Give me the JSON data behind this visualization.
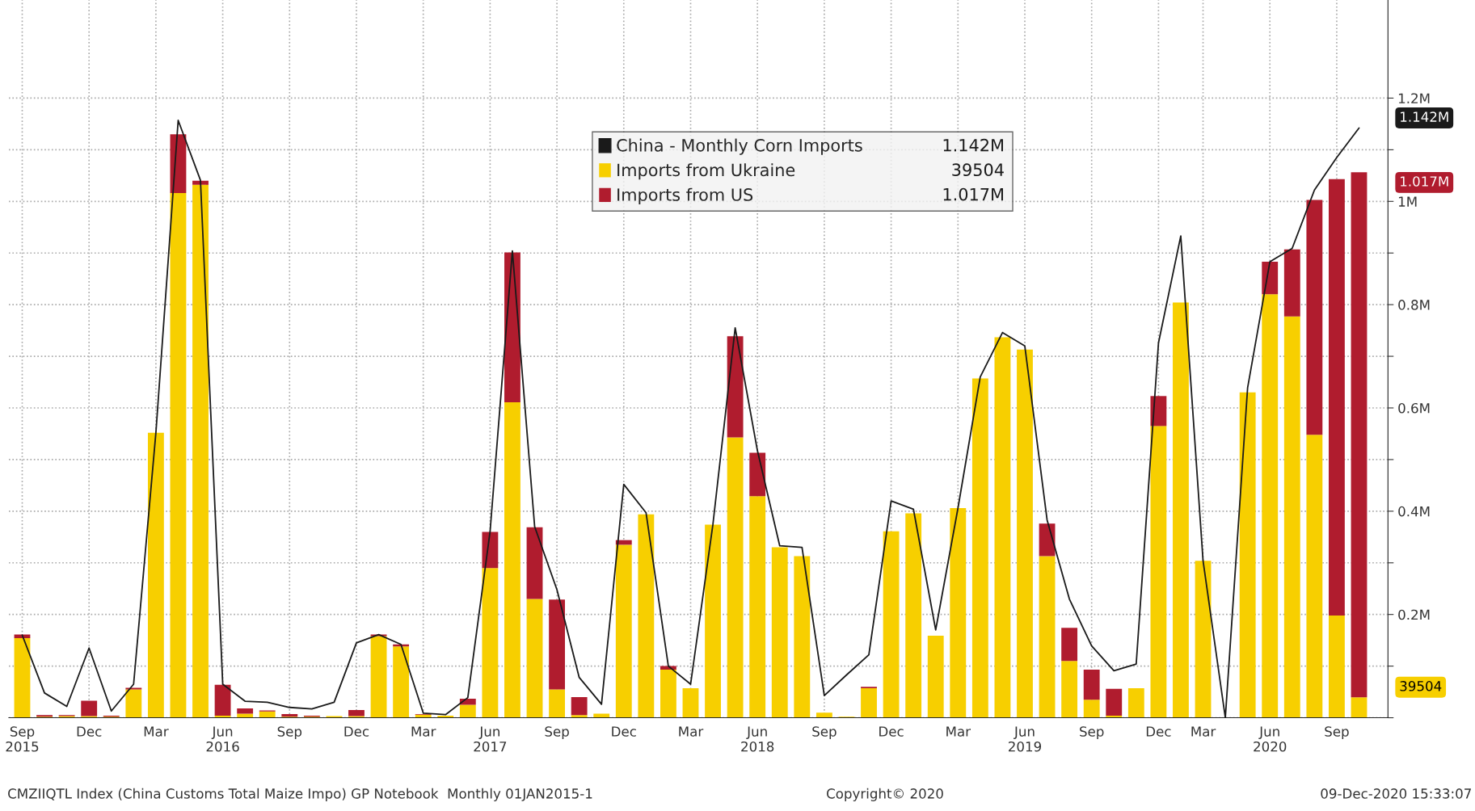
{
  "chart_data": {
    "type": "bar",
    "stacked": true,
    "categories": [
      "Sep\n2015",
      null,
      null,
      "Dec",
      null,
      null,
      "Mar",
      null,
      null,
      "Jun\n2016",
      null,
      null,
      "Sep",
      null,
      null,
      "Dec",
      null,
      null,
      "Mar",
      null,
      null,
      "Jun\n2017",
      null,
      null,
      "Sep",
      null,
      null,
      "Dec",
      null,
      null,
      "Mar",
      null,
      null,
      "Jun\n2018",
      null,
      null,
      "Sep",
      null,
      null,
      "Dec",
      null,
      null,
      "Mar",
      null,
      null,
      "Jun\n2019",
      null,
      null,
      "Sep",
      null,
      null,
      "Dec",
      null,
      "Mar",
      null,
      null,
      "Jun\n2020",
      null,
      null,
      "Sep",
      null
    ],
    "series": [
      {
        "name": "China - Monthly Corn Imports",
        "type": "line",
        "color": "#1a1a1a",
        "values": [
          160000,
          48000,
          22000,
          135000,
          13000,
          65000,
          552000,
          1157000,
          1041000,
          65000,
          32000,
          30000,
          20000,
          17000,
          30000,
          145000,
          161000,
          142000,
          9000,
          6000,
          39000,
          361000,
          904000,
          370000,
          248000,
          78000,
          26000,
          452000,
          397000,
          100000,
          65000,
          374000,
          755000,
          517000,
          333000,
          330000,
          43000,
          83000,
          122000,
          420000,
          404000,
          170000,
          406000,
          660000,
          746000,
          720000,
          383000,
          230000,
          139000,
          91000,
          104000,
          726000,
          933000,
          304000,
          0,
          639000,
          883000,
          909000,
          1022000,
          1085000,
          1142000
        ]
      },
      {
        "name": "Imports from Ukraine",
        "type": "bar",
        "color": "#f7cf00",
        "values": [
          154000,
          2000,
          3000,
          3000,
          2000,
          55000,
          552000,
          1016000,
          1032000,
          4000,
          8000,
          12000,
          2000,
          2000,
          3000,
          3000,
          158000,
          138000,
          6000,
          4000,
          25000,
          290000,
          611000,
          230000,
          55000,
          5000,
          8000,
          335000,
          394000,
          93000,
          57000,
          374000,
          543000,
          429000,
          330000,
          313000,
          10000,
          2000,
          57000,
          361000,
          396000,
          159000,
          406000,
          657000,
          737000,
          713000,
          313000,
          110000,
          35000,
          4000,
          57000,
          565000,
          804000,
          304000,
          0,
          630000,
          820000,
          777000,
          548000,
          198000,
          39504
        ]
      },
      {
        "name": "Imports from US",
        "type": "bar",
        "color": "#b01c2e",
        "values": [
          7000,
          3000,
          2000,
          30000,
          2000,
          3000,
          0,
          114000,
          8000,
          60000,
          10000,
          2000,
          5000,
          2000,
          0,
          12000,
          3000,
          4000,
          1000,
          0,
          12000,
          70000,
          290000,
          139000,
          174000,
          35000,
          0,
          9000,
          0,
          7000,
          0,
          0,
          196000,
          84000,
          0,
          0,
          0,
          0,
          3000,
          0,
          0,
          0,
          0,
          0,
          0,
          0,
          63000,
          64000,
          58000,
          52000,
          0,
          58000,
          0,
          0,
          0,
          0,
          63000,
          130000,
          455000,
          845000,
          1017000
        ]
      }
    ],
    "ylim": [
      0,
      1390000
    ],
    "yticks": [
      {
        "value": 0,
        "label": null
      },
      {
        "value": 100000,
        "label": null
      },
      {
        "value": 200000,
        "label": "0.2M"
      },
      {
        "value": 300000,
        "label": null
      },
      {
        "value": 400000,
        "label": "0.4M"
      },
      {
        "value": 500000,
        "label": null
      },
      {
        "value": 600000,
        "label": "0.6M"
      },
      {
        "value": 700000,
        "label": null
      },
      {
        "value": 800000,
        "label": "0.8M"
      },
      {
        "value": 900000,
        "label": null
      },
      {
        "value": 1000000,
        "label": "1M"
      },
      {
        "value": 1100000,
        "label": null
      },
      {
        "value": 1200000,
        "label": "1.2M"
      }
    ],
    "grid": true,
    "legend": "top",
    "annotations": [
      "1.142M",
      "39504",
      "1.017M",
      "1.142M",
      "39504",
      "1.017M",
      "CMZIIQTL Index (China Customs Total Maize Impo) GP Notebook  Monthly 01JAN2015-1",
      "Copyright© 2020",
      "09-Dec-2020 15:33:07"
    ]
  }
}
